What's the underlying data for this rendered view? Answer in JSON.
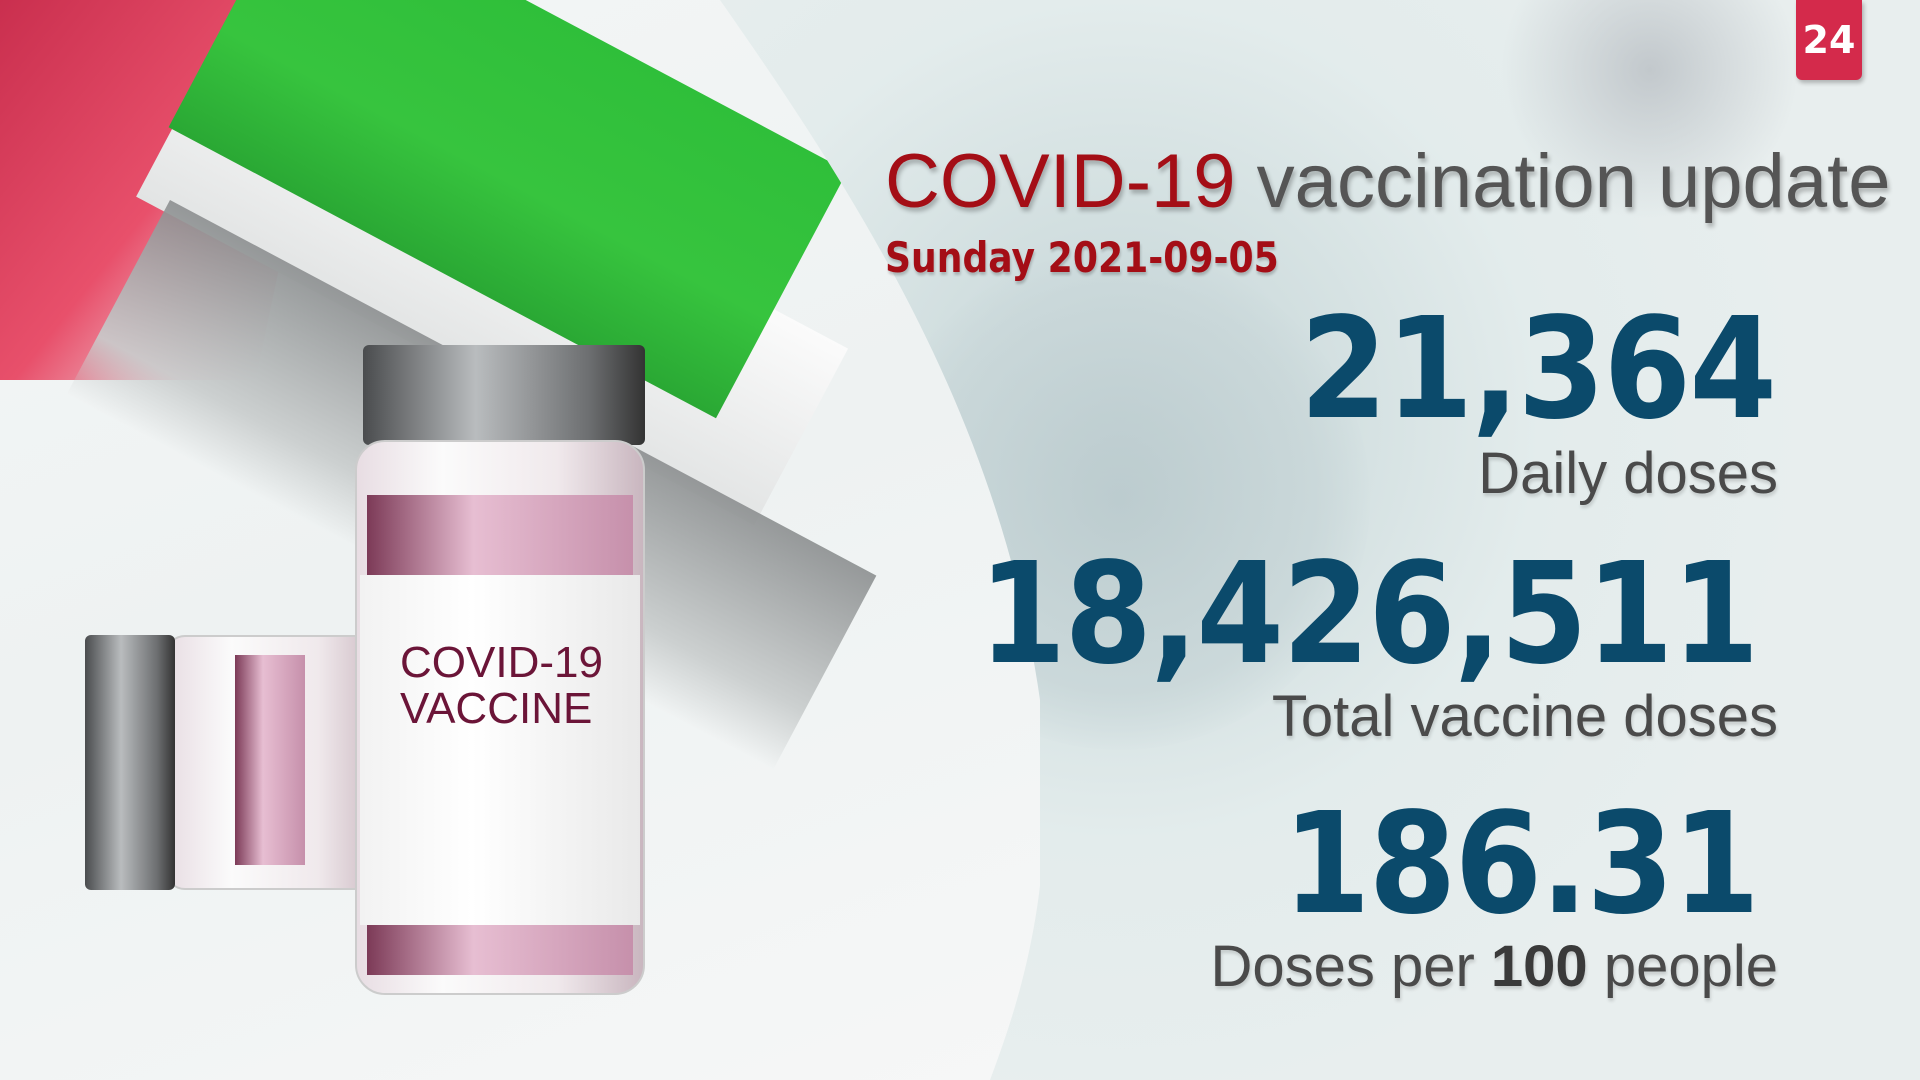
{
  "header": {
    "title_highlight": "COVID-19",
    "title_rest": "vaccination update",
    "date": "Sunday 2021-09-05"
  },
  "logo": {
    "text": "24",
    "color": "#d42a4b"
  },
  "vial_label": {
    "line1": "COVID-19",
    "line2": "VACCINE"
  },
  "stats": [
    {
      "value": "21,364",
      "label": "Daily doses"
    },
    {
      "value": "18,426,511",
      "label": "Total vaccine doses"
    },
    {
      "value": "186.31",
      "label_pre": "Doses per ",
      "label_bold": "100",
      "label_post": " people"
    }
  ],
  "colors": {
    "accent_red": "#a40e16",
    "number_blue": "#0b4a6b",
    "flag_green": "#2fbf3a",
    "flag_red": "#c52a4a"
  }
}
